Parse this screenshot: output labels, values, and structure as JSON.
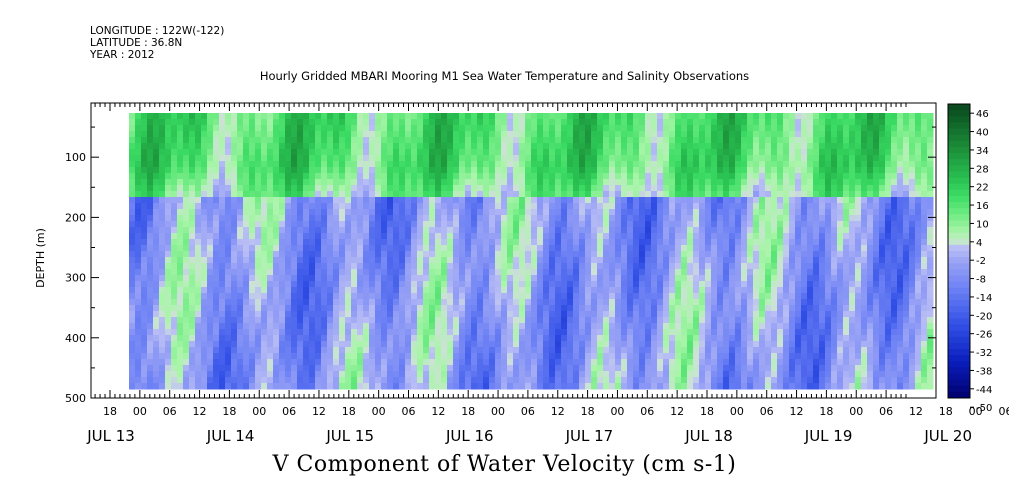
{
  "header": {
    "longitude": "LONGITUDE : 122W(-122)",
    "latitude": "LATITUDE : 36.8N",
    "year": "YEAR : 2012",
    "title": "Hourly Gridded MBARI Mooring M1 Sea Water Temperature and Salinity Observations",
    "x_title": "V Component of Water Velocity (cm s-1)"
  },
  "chart_data": {
    "type": "heatmap",
    "title": "Hourly Gridded MBARI Mooring M1 Sea Water Temperature and Salinity Observations",
    "xlabel": "V Component of Water Velocity (cm s-1)",
    "ylabel": "DEPTH (m)",
    "ylim": [
      500,
      10
    ],
    "y_ticks": [
      100,
      200,
      300,
      400,
      500
    ],
    "x_hour_labels": [
      "18",
      "00",
      "06",
      "12",
      "18",
      "00",
      "06",
      "12",
      "18",
      "00",
      "06",
      "12",
      "18",
      "00",
      "06",
      "12",
      "18",
      "00",
      "06",
      "12",
      "18",
      "00",
      "06",
      "12",
      "18",
      "00",
      "06",
      "12",
      "18",
      "00",
      "06",
      "12"
    ],
    "x_day_labels": [
      "JUL 13",
      "JUL 14",
      "JUL 15",
      "JUL 16",
      "JUL 17",
      "JUL 18",
      "JUL 19",
      "JUL 20"
    ],
    "colorbar": {
      "levels": [
        "46",
        "40",
        "34",
        "28",
        "22",
        "16",
        "10",
        "4",
        "-2",
        "-8",
        "-14",
        "-20",
        "-26",
        "-32",
        "-38",
        "-44",
        "-50"
      ],
      "low_color": "#000080",
      "high_color": "#0a4a1a"
    },
    "pattern": "Upper ~150 m dominated by positive (green, northward) velocities around +10 to +25 cm/s; deeper water alternates between negative (blue, -5 to -15 cm/s) and weakly positive bands with roughly daily/tidal periodicity"
  }
}
